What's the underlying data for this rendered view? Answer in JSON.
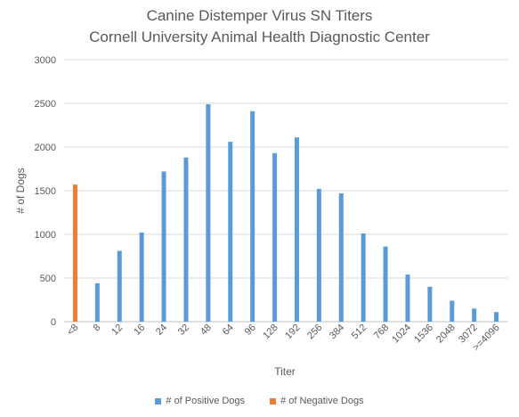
{
  "chart_data": {
    "type": "bar",
    "title": "Canine Distemper Virus SN Titers",
    "subtitle": "Cornell University Animal Health Diagnostic Center",
    "xlabel": "Titer",
    "ylabel": "# of Dogs",
    "ylim": [
      0,
      3000
    ],
    "yticks": [
      "0",
      "500",
      "1000",
      "1500",
      "2000",
      "2500",
      "3000"
    ],
    "grid": true,
    "legend_position": "bottom",
    "categories": [
      "<8",
      "8",
      "12",
      "16",
      "24",
      "32",
      "48",
      "64",
      "96",
      "128",
      "192",
      "256",
      "384",
      "512",
      "768",
      "1024",
      "1536",
      "2048",
      "3072",
      ">=4096"
    ],
    "series": [
      {
        "name": "# of Positive Dogs",
        "color": "#5B9BD5",
        "values": [
          0,
          440,
          810,
          1020,
          1720,
          1880,
          2490,
          2060,
          2410,
          1930,
          2110,
          1520,
          1470,
          1010,
          860,
          540,
          400,
          240,
          150,
          110
        ]
      },
      {
        "name": "# of Negative Dogs",
        "color": "#ED7D31",
        "values": [
          1570,
          0,
          0,
          0,
          0,
          0,
          0,
          0,
          0,
          0,
          0,
          0,
          0,
          0,
          0,
          0,
          0,
          0,
          0,
          0
        ]
      }
    ]
  }
}
